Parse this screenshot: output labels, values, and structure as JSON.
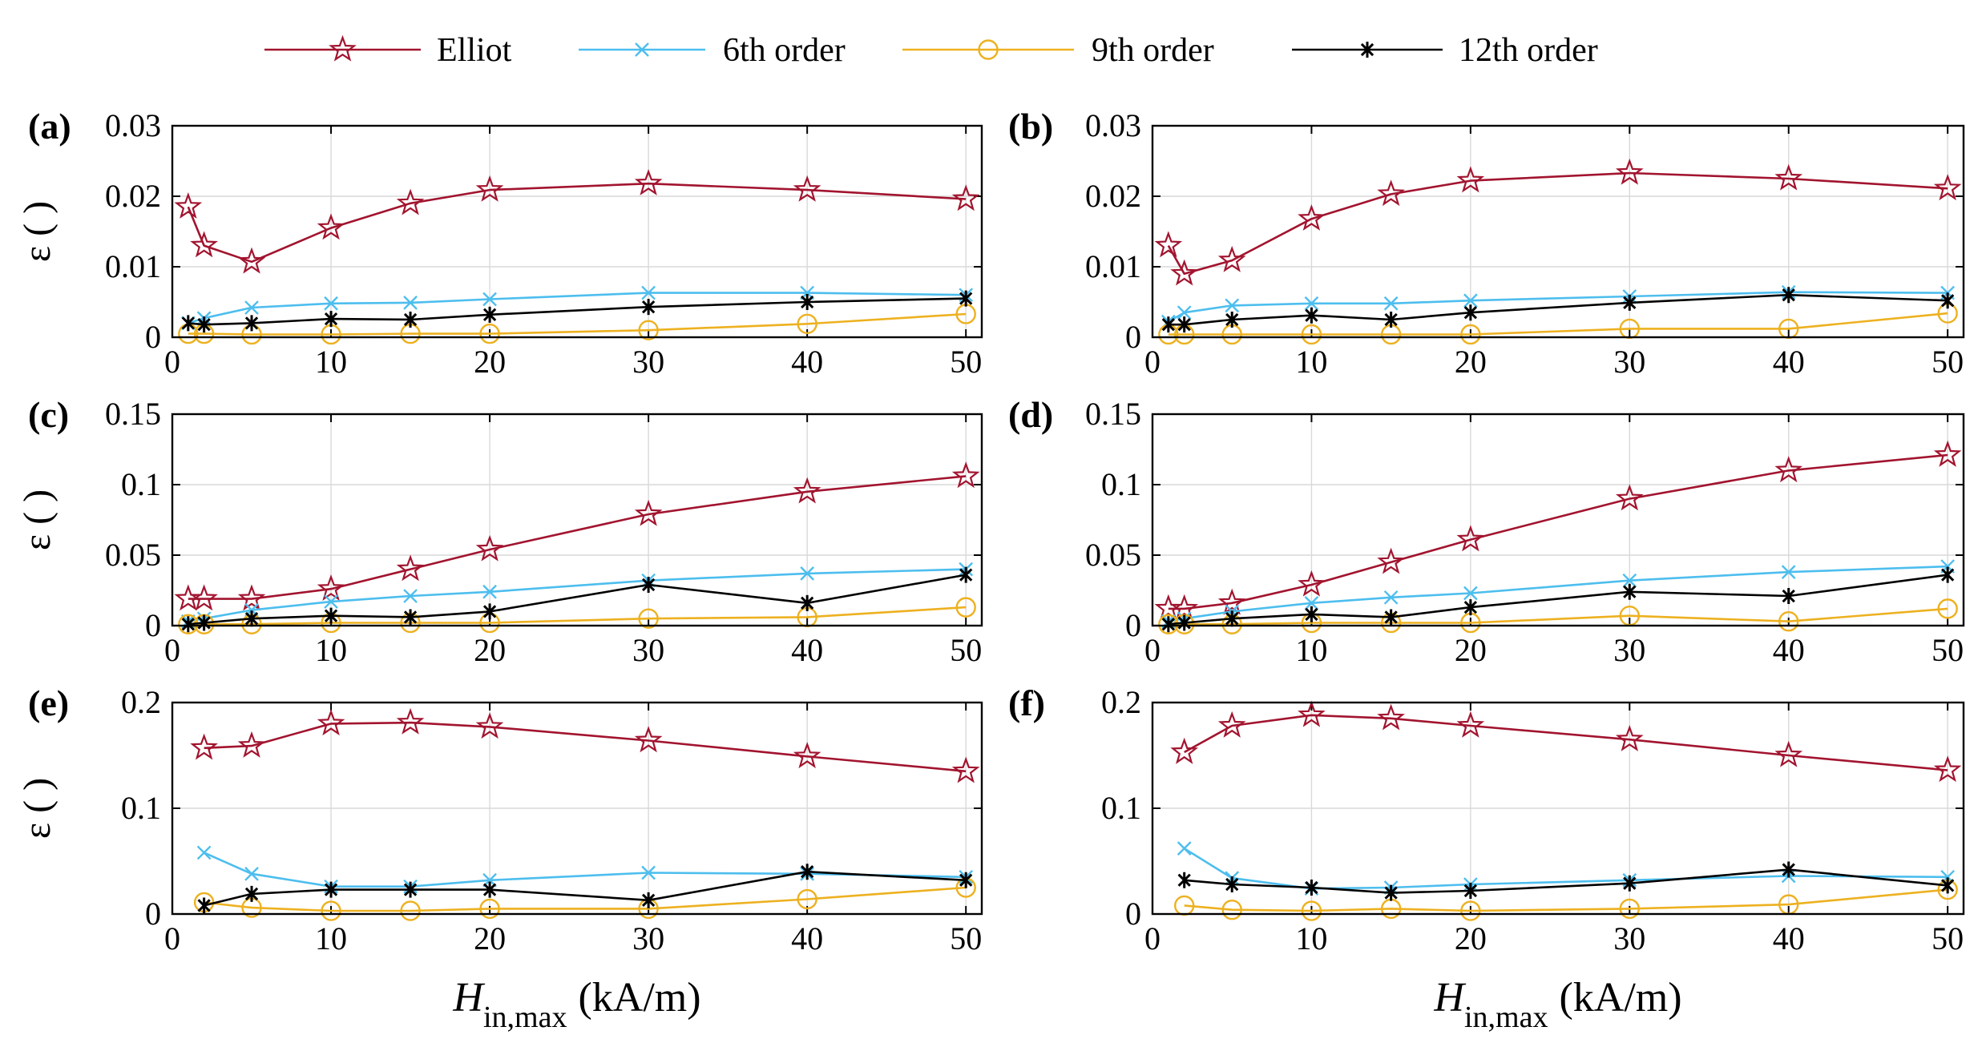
{
  "chart_data": {
    "type": "line",
    "legend": {
      "position": "top-center",
      "entries": [
        {
          "name": "Elliot",
          "color": "#a2142f",
          "marker": "star"
        },
        {
          "name": "6th order",
          "color": "#4dbeee",
          "marker": "x"
        },
        {
          "name": "9th order",
          "color": "#edb120",
          "marker": "circle"
        },
        {
          "name": "12th order",
          "color": "#000000",
          "marker": "asterisk"
        }
      ]
    },
    "xlabel": {
      "main": "H",
      "sub": "in,max",
      "unit": "(kA/m)"
    },
    "ylabel": "ε ( )",
    "xlim": [
      0,
      51
    ],
    "xticks": [
      "0",
      "10",
      "20",
      "30",
      "40",
      "50"
    ],
    "panels": [
      {
        "label": "(a)",
        "ylim": [
          0,
          0.03
        ],
        "yticks": [
          "0",
          "0.01",
          "0.02",
          "0.03"
        ],
        "x": [
          1,
          2,
          5,
          10,
          15,
          20,
          30,
          40,
          50
        ],
        "series": [
          {
            "name": "Elliot",
            "values": [
              0.0185,
              0.013,
              0.0107,
              0.0155,
              0.019,
              0.0209,
              0.0218,
              0.0209,
              0.0196
            ]
          },
          {
            "name": "6th order",
            "values": [
              0.002,
              0.0027,
              0.0042,
              0.0048,
              0.0049,
              0.0054,
              0.0063,
              0.0063,
              0.006
            ]
          },
          {
            "name": "9th order",
            "values": [
              0.0005,
              0.0005,
              0.0004,
              0.0004,
              0.0005,
              0.0005,
              0.001,
              0.0019,
              0.0033
            ]
          },
          {
            "name": "12th order",
            "values": [
              0.002,
              0.0018,
              0.002,
              0.0026,
              0.0025,
              0.0032,
              0.0043,
              0.005,
              0.0055
            ]
          }
        ]
      },
      {
        "label": "(b)",
        "ylim": [
          0,
          0.03
        ],
        "yticks": [
          "0",
          "0.01",
          "0.02",
          "0.03"
        ],
        "x": [
          1,
          2,
          5,
          10,
          15,
          20,
          30,
          40,
          50
        ],
        "series": [
          {
            "name": "Elliot",
            "values": [
              0.013,
              0.009,
              0.0109,
              0.0168,
              0.0203,
              0.0222,
              0.0233,
              0.0225,
              0.0211
            ]
          },
          {
            "name": "6th order",
            "values": [
              0.0022,
              0.0035,
              0.0045,
              0.0048,
              0.0048,
              0.0052,
              0.0058,
              0.0064,
              0.0063
            ]
          },
          {
            "name": "9th order",
            "values": [
              0.0004,
              0.0004,
              0.0004,
              0.0004,
              0.0004,
              0.0004,
              0.0012,
              0.0012,
              0.0034
            ]
          },
          {
            "name": "12th order",
            "values": [
              0.0018,
              0.0018,
              0.0025,
              0.0031,
              0.0025,
              0.0035,
              0.0049,
              0.006,
              0.0052
            ]
          }
        ]
      },
      {
        "label": "(c)",
        "ylim": [
          0,
          0.15
        ],
        "yticks": [
          "0",
          "0.05",
          "0.1",
          "0.15"
        ],
        "x": [
          1,
          2,
          5,
          10,
          15,
          20,
          30,
          40,
          50
        ],
        "series": [
          {
            "name": "Elliot",
            "values": [
              0.019,
              0.019,
              0.019,
              0.026,
              0.04,
              0.054,
              0.079,
              0.095,
              0.106
            ]
          },
          {
            "name": "6th order",
            "values": [
              0.003,
              0.005,
              0.011,
              0.017,
              0.021,
              0.024,
              0.032,
              0.037,
              0.04
            ]
          },
          {
            "name": "9th order",
            "values": [
              0.001,
              0.001,
              0.001,
              0.002,
              0.002,
              0.002,
              0.005,
              0.006,
              0.013
            ]
          },
          {
            "name": "12th order",
            "values": [
              0.001,
              0.002,
              0.005,
              0.007,
              0.006,
              0.01,
              0.029,
              0.016,
              0.036
            ]
          }
        ]
      },
      {
        "label": "(d)",
        "ylim": [
          0,
          0.15
        ],
        "yticks": [
          "0",
          "0.05",
          "0.1",
          "0.15"
        ],
        "x": [
          1,
          2,
          5,
          10,
          15,
          20,
          30,
          40,
          50
        ],
        "series": [
          {
            "name": "Elliot",
            "values": [
              0.012,
              0.012,
              0.016,
              0.029,
              0.045,
              0.061,
              0.09,
              0.11,
              0.121
            ]
          },
          {
            "name": "6th order",
            "values": [
              0.003,
              0.005,
              0.01,
              0.016,
              0.02,
              0.023,
              0.032,
              0.038,
              0.042
            ]
          },
          {
            "name": "9th order",
            "values": [
              0.001,
              0.001,
              0.001,
              0.002,
              0.002,
              0.002,
              0.007,
              0.003,
              0.012
            ]
          },
          {
            "name": "12th order",
            "values": [
              0.001,
              0.002,
              0.005,
              0.008,
              0.006,
              0.013,
              0.024,
              0.021,
              0.036
            ]
          }
        ]
      },
      {
        "label": "(e)",
        "ylim": [
          0,
          0.2
        ],
        "yticks": [
          "0",
          "0.1",
          "0.2"
        ],
        "x": [
          2,
          5,
          10,
          15,
          20,
          30,
          40,
          50
        ],
        "series": [
          {
            "name": "Elliot",
            "values": [
              0.157,
              0.159,
              0.18,
              0.181,
              0.177,
              0.164,
              0.149,
              0.135
            ]
          },
          {
            "name": "6th order",
            "values": [
              0.058,
              0.038,
              0.026,
              0.026,
              0.032,
              0.039,
              0.038,
              0.035
            ]
          },
          {
            "name": "9th order",
            "values": [
              0.011,
              0.006,
              0.003,
              0.003,
              0.005,
              0.005,
              0.014,
              0.025
            ]
          },
          {
            "name": "12th order",
            "values": [
              0.008,
              0.019,
              0.023,
              0.023,
              0.023,
              0.013,
              0.04,
              0.032
            ]
          }
        ]
      },
      {
        "label": "(f)",
        "ylim": [
          0,
          0.2
        ],
        "yticks": [
          "0",
          "0.1",
          "0.2"
        ],
        "x": [
          2,
          5,
          10,
          15,
          20,
          30,
          40,
          50
        ],
        "series": [
          {
            "name": "Elliot",
            "values": [
              0.153,
              0.178,
              0.188,
              0.185,
              0.178,
              0.165,
              0.15,
              0.136
            ]
          },
          {
            "name": "6th order",
            "values": [
              0.062,
              0.034,
              0.024,
              0.025,
              0.028,
              0.032,
              0.036,
              0.035
            ]
          },
          {
            "name": "9th order",
            "values": [
              0.008,
              0.004,
              0.003,
              0.005,
              0.003,
              0.005,
              0.009,
              0.023
            ]
          },
          {
            "name": "12th order",
            "values": [
              0.032,
              0.028,
              0.025,
              0.02,
              0.022,
              0.029,
              0.042,
              0.027
            ]
          }
        ]
      }
    ]
  }
}
